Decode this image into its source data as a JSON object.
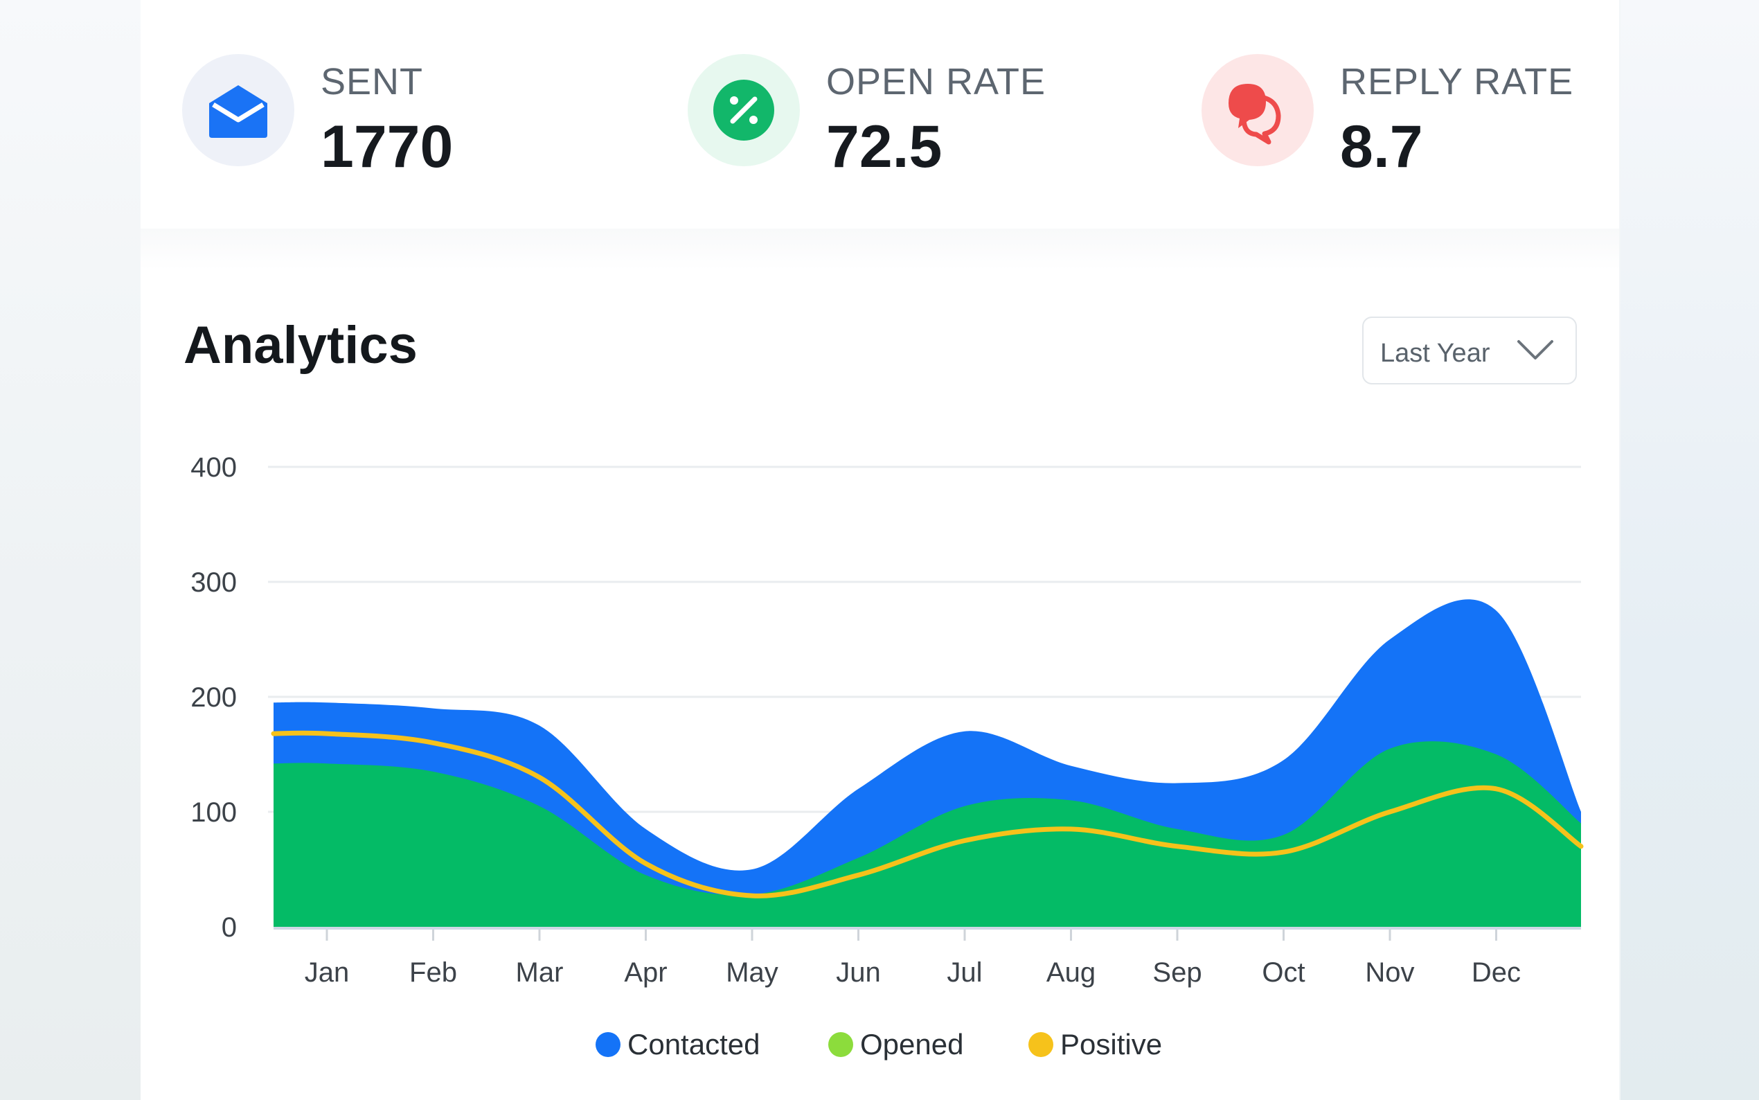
{
  "stats": [
    {
      "label": "SENT",
      "value": "1770",
      "icon": "envelope-open-icon",
      "color": "#1a73f5",
      "bg": "#eef1f8"
    },
    {
      "label": "OPEN RATE",
      "value": "72.5",
      "icon": "percent-icon",
      "color": "#12b76a",
      "bg": "#e7f8ef"
    },
    {
      "label": "REPLY RATE",
      "value": "8.7",
      "icon": "chat-bubbles-icon",
      "color": "#ee4b4b",
      "bg": "#fde6e6"
    }
  ],
  "analytics": {
    "title": "Analytics",
    "dropdown": {
      "selected": "Last Year",
      "icon": "chevron-down-icon"
    }
  },
  "chart_data": {
    "type": "area",
    "title": "",
    "categories": [
      "Jan",
      "Feb",
      "Mar",
      "Apr",
      "May",
      "Jun",
      "Jul",
      "Aug",
      "Sep",
      "Oct",
      "Nov",
      "Dec"
    ],
    "x": [
      "Jan",
      "Feb",
      "Mar",
      "Apr",
      "May",
      "Jun",
      "Jul",
      "Aug",
      "Sep",
      "Oct",
      "Nov",
      "Dec"
    ],
    "ylim": [
      0,
      400
    ],
    "yticks": [
      0,
      100,
      200,
      300,
      400
    ],
    "grid": true,
    "legend_position": "bottom",
    "series": [
      {
        "name": "Contacted",
        "type": "area",
        "color": "#1473f7",
        "values": [
          195,
          190,
          175,
          85,
          50,
          120,
          170,
          140,
          125,
          145,
          250,
          275
        ],
        "end_value": 100
      },
      {
        "name": "Opened",
        "type": "area",
        "color": "#04bb66",
        "legend_color": "#8cdc3c",
        "values": [
          142,
          135,
          105,
          45,
          28,
          60,
          105,
          110,
          85,
          80,
          155,
          150
        ],
        "end_value": 90
      },
      {
        "name": "Positive",
        "type": "line",
        "color": "#f6c21b",
        "values": [
          168,
          160,
          130,
          55,
          27,
          45,
          75,
          85,
          70,
          65,
          100,
          120
        ],
        "end_value": 70
      }
    ]
  }
}
